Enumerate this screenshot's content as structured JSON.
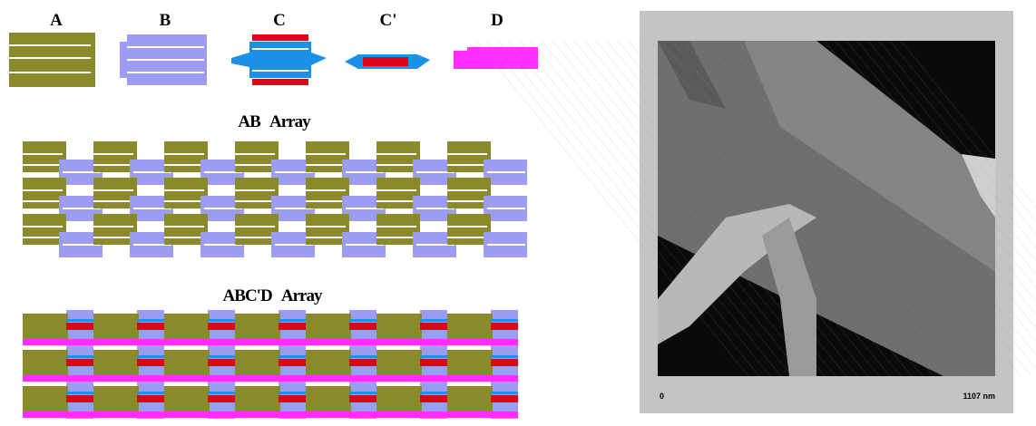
{
  "tile_labels": [
    "A",
    "B",
    "C",
    "C'",
    "D"
  ],
  "arrays": [
    {
      "title": "AB   Array"
    },
    {
      "title": "ABC'D   Array"
    }
  ],
  "afm_image": {
    "scale_start": "0",
    "scale_end": "1107 nm"
  }
}
